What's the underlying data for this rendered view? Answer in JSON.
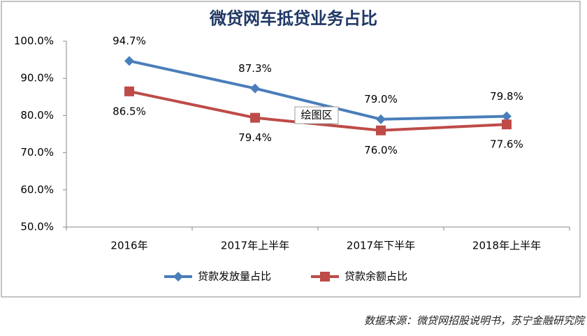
{
  "chart_data": {
    "type": "line",
    "title": "微贷网车抵贷业务占比",
    "categories": [
      "2016年",
      "2017年上半年",
      "2017年下半年",
      "2018年上半年"
    ],
    "series": [
      {
        "name": "贷款发放量占比",
        "color": "#4a7ebb",
        "marker": "diamond",
        "label_position": "above",
        "values": [
          94.7,
          87.3,
          79.0,
          79.8
        ],
        "value_labels": [
          "94.7%",
          "87.3%",
          "79.0%",
          "79.8%"
        ]
      },
      {
        "name": "贷款余额占比",
        "color": "#be4b48",
        "marker": "square",
        "label_position": "below",
        "values": [
          86.5,
          79.4,
          76.0,
          77.6
        ],
        "value_labels": [
          "86.5%",
          "79.4%",
          "76.0%",
          "77.6%"
        ]
      }
    ],
    "ylim": [
      50,
      100
    ],
    "yticks": [
      {
        "value": 50,
        "label": "50.0%"
      },
      {
        "value": 60,
        "label": "60.0%"
      },
      {
        "value": 70,
        "label": "70.0%"
      },
      {
        "value": 80,
        "label": "80.0%"
      },
      {
        "value": 90,
        "label": "90.0%"
      },
      {
        "value": 100,
        "label": "100.0%"
      }
    ],
    "grid": false,
    "legend": "bottom",
    "tooltip": "绘图区",
    "note": "数据来源：微贷网招股说明书，苏宁金融研究院"
  }
}
